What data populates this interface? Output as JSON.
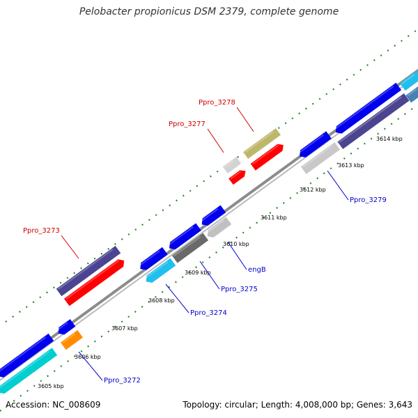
{
  "title": "Pelobacter propionicus DSM 2379, complete genome",
  "footer": {
    "accession": "Accession: NC_008609",
    "summary": "Topology: circular; Length: 4,008,000 bp; Genes: 3,643"
  },
  "colors": {
    "backbone": "#8c8c8c",
    "gc_dots": "#228b22",
    "label_forward": "#cc0000",
    "label_reverse": "#0000cc"
  },
  "kbp_ticks": [
    {
      "kbp": 3605,
      "label": "3605 kbp"
    },
    {
      "kbp": 3606,
      "label": "3606 kbp"
    },
    {
      "kbp": 3607,
      "label": "3607 kbp"
    },
    {
      "kbp": 3608,
      "label": "3608 kbp"
    },
    {
      "kbp": 3609,
      "label": "3609 kbp"
    },
    {
      "kbp": 3610,
      "label": "3610 kbp"
    },
    {
      "kbp": 3611,
      "label": "3611 kbp"
    },
    {
      "kbp": 3612,
      "label": "3612 kbp"
    },
    {
      "kbp": 3613,
      "label": "3613 kbp"
    },
    {
      "kbp": 3614,
      "label": "3614 kbp"
    }
  ],
  "gene_labels": [
    {
      "text": "Ppro_3273",
      "strand": "forward"
    },
    {
      "text": "Ppro_3277",
      "strand": "forward"
    },
    {
      "text": "Ppro_3278",
      "strand": "forward"
    },
    {
      "text": "Ppro_3272",
      "strand": "reverse"
    },
    {
      "text": "Ppro_3274",
      "strand": "reverse"
    },
    {
      "text": "Ppro_3275",
      "strand": "reverse"
    },
    {
      "text": "engB",
      "strand": "reverse"
    },
    {
      "text": "Ppro_3279",
      "strand": "reverse"
    }
  ]
}
